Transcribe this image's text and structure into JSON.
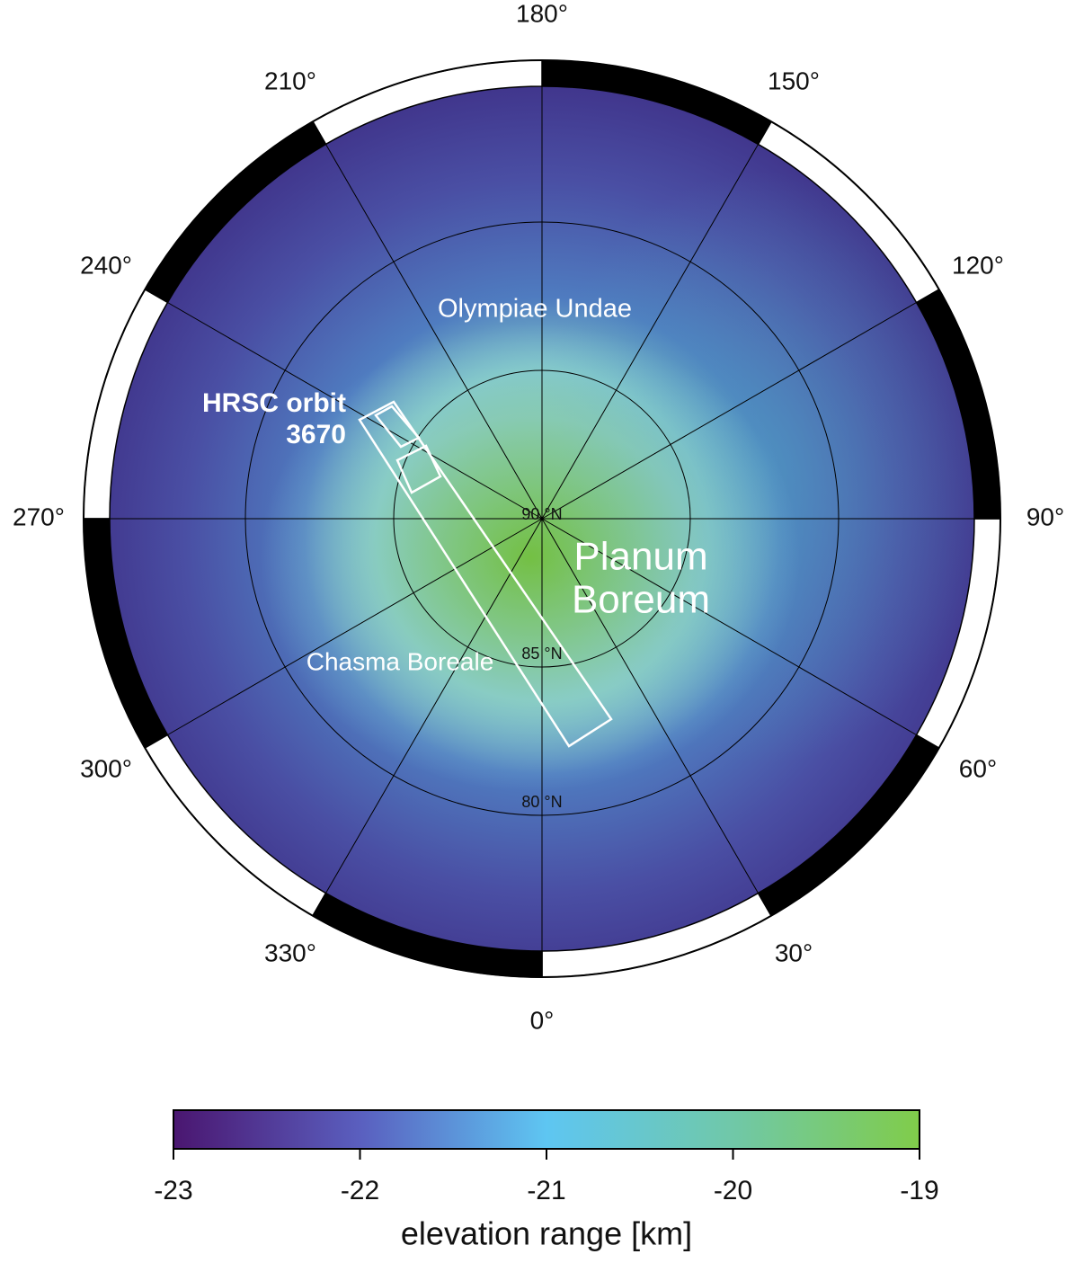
{
  "map": {
    "longitude_labels": [
      {
        "value": 180,
        "label": "180°"
      },
      {
        "value": 150,
        "label": "150°"
      },
      {
        "value": 120,
        "label": "120°"
      },
      {
        "value": 90,
        "label": "90°"
      },
      {
        "value": 60,
        "label": "60°"
      },
      {
        "value": 30,
        "label": "30°"
      },
      {
        "value": 0,
        "label": "0°"
      },
      {
        "value": 330,
        "label": "330°"
      },
      {
        "value": 300,
        "label": "300°"
      },
      {
        "value": 270,
        "label": "270°"
      },
      {
        "value": 240,
        "label": "240°"
      },
      {
        "value": 210,
        "label": "210°"
      }
    ],
    "latitude_labels": [
      {
        "value": 90,
        "label": "90 °N"
      },
      {
        "value": 85,
        "label": "85 °N"
      },
      {
        "value": 80,
        "label": "80 °N"
      }
    ],
    "annotations": {
      "olympiae_undae": "Olympiae Undae",
      "hrsc_line1": "HRSC orbit",
      "hrsc_line2": "3670",
      "planum_line1": "Planum",
      "planum_line2": "Boreum",
      "chasma_boreale": "Chasma Boreale"
    }
  },
  "colorbar": {
    "label": "elevation range [km]",
    "lim": [
      -23,
      -19
    ],
    "ticks": [
      -23,
      -22,
      -21,
      -20,
      -19
    ],
    "colors": [
      "#4a1670",
      "#5a5fbf",
      "#5ec6f2",
      "#70c8a8",
      "#80cc4a"
    ]
  }
}
